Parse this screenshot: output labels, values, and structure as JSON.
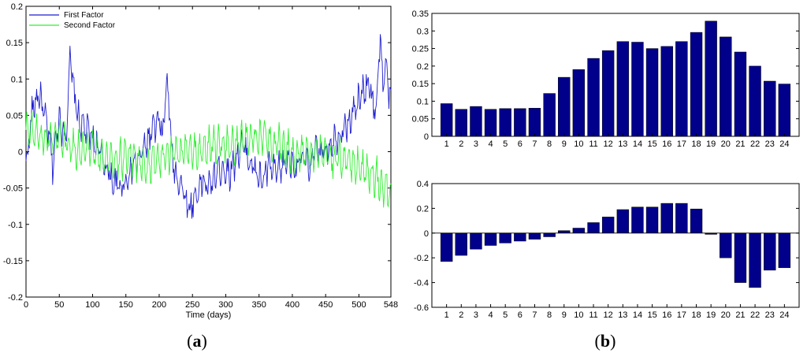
{
  "captions": {
    "left": "a",
    "right": "b"
  },
  "chart_data": [
    {
      "type": "line",
      "xlabel": "Time (days)",
      "ylabel": "",
      "xlim": [
        0,
        548
      ],
      "ylim": [
        -0.2,
        0.2
      ],
      "xticks": [
        "0",
        "50",
        "100",
        "150",
        "200",
        "250",
        "300",
        "350",
        "400",
        "450",
        "500",
        "548"
      ],
      "yticks": [
        "-0.2",
        "-0.15",
        "-0.1",
        "-0.05",
        "0",
        "0.05",
        "0.1",
        "0.15",
        "0.2"
      ],
      "legend_position": "top-left",
      "series": [
        {
          "name": "First Factor",
          "color": "#1f1fcf",
          "anchors": [
            [
              0,
              -0.02
            ],
            [
              5,
              0.02
            ],
            [
              10,
              0.06
            ],
            [
              20,
              0.08
            ],
            [
              30,
              0.04
            ],
            [
              35,
              0.02
            ],
            [
              40,
              -0.02
            ],
            [
              50,
              0.05
            ],
            [
              55,
              0.03
            ],
            [
              60,
              0.02
            ],
            [
              66,
              0.13
            ],
            [
              72,
              0.08
            ],
            [
              80,
              0.04
            ],
            [
              90,
              0.03
            ],
            [
              100,
              0.02
            ],
            [
              110,
              0.0
            ],
            [
              120,
              -0.02
            ],
            [
              130,
              -0.04
            ],
            [
              140,
              -0.05
            ],
            [
              150,
              -0.04
            ],
            [
              160,
              -0.02
            ],
            [
              170,
              -0.01
            ],
            [
              180,
              0.01
            ],
            [
              190,
              0.03
            ],
            [
              200,
              0.04
            ],
            [
              205,
              0.02
            ],
            [
              212,
              0.1
            ],
            [
              220,
              -0.01
            ],
            [
              225,
              -0.03
            ],
            [
              235,
              -0.05
            ],
            [
              245,
              -0.08
            ],
            [
              255,
              -0.06
            ],
            [
              265,
              -0.04
            ],
            [
              275,
              -0.05
            ],
            [
              285,
              -0.03
            ],
            [
              295,
              -0.02
            ],
            [
              305,
              -0.03
            ],
            [
              315,
              -0.01
            ],
            [
              325,
              0.01
            ],
            [
              335,
              -0.01
            ],
            [
              345,
              -0.03
            ],
            [
              355,
              -0.04
            ],
            [
              365,
              -0.02
            ],
            [
              375,
              -0.03
            ],
            [
              385,
              -0.02
            ],
            [
              395,
              -0.01
            ],
            [
              405,
              -0.02
            ],
            [
              415,
              -0.01
            ],
            [
              425,
              -0.02
            ],
            [
              435,
              0.0
            ],
            [
              445,
              0.0
            ],
            [
              455,
              0.01
            ],
            [
              465,
              0.02
            ],
            [
              475,
              0.03
            ],
            [
              485,
              0.04
            ],
            [
              495,
              0.06
            ],
            [
              505,
              0.08
            ],
            [
              515,
              0.1
            ],
            [
              520,
              0.07
            ],
            [
              525,
              0.05
            ],
            [
              532,
              0.16
            ],
            [
              536,
              0.09
            ],
            [
              540,
              0.12
            ],
            [
              548,
              0.06
            ]
          ],
          "amplitude": 0.025
        },
        {
          "name": "Second Factor",
          "color": "#33ee33",
          "anchors": [
            [
              0,
              0.03
            ],
            [
              20,
              0.02
            ],
            [
              40,
              0.02
            ],
            [
              60,
              0.01
            ],
            [
              80,
              0.0
            ],
            [
              100,
              0.0
            ],
            [
              120,
              -0.01
            ],
            [
              140,
              -0.01
            ],
            [
              160,
              -0.01
            ],
            [
              180,
              -0.02
            ],
            [
              200,
              -0.01
            ],
            [
              220,
              0.0
            ],
            [
              240,
              0.0
            ],
            [
              260,
              0.0
            ],
            [
              280,
              0.01
            ],
            [
              300,
              0.01
            ],
            [
              320,
              0.01
            ],
            [
              340,
              0.02
            ],
            [
              360,
              0.02
            ],
            [
              380,
              0.01
            ],
            [
              400,
              0.0
            ],
            [
              420,
              0.0
            ],
            [
              440,
              0.0
            ],
            [
              460,
              -0.01
            ],
            [
              480,
              -0.01
            ],
            [
              500,
              -0.02
            ],
            [
              520,
              -0.03
            ],
            [
              540,
              -0.05
            ],
            [
              548,
              -0.06
            ]
          ],
          "amplitude": 0.022
        }
      ]
    },
    {
      "type": "bar",
      "categories": [
        "1",
        "2",
        "3",
        "4",
        "5",
        "6",
        "7",
        "8",
        "9",
        "10",
        "11",
        "12",
        "13",
        "14",
        "15",
        "16",
        "17",
        "18",
        "19",
        "20",
        "21",
        "22",
        "23",
        "24"
      ],
      "values": [
        0.093,
        0.077,
        0.085,
        0.077,
        0.079,
        0.079,
        0.08,
        0.122,
        0.168,
        0.19,
        0.222,
        0.244,
        0.27,
        0.268,
        0.25,
        0.256,
        0.27,
        0.296,
        0.328,
        0.283,
        0.24,
        0.2,
        0.157,
        0.149
      ],
      "ylim": [
        0,
        0.35
      ],
      "yticks": [
        "0",
        "0.05",
        "0.1",
        "0.15",
        "0.2",
        "0.25",
        "0.3",
        "0.35"
      ],
      "color": "#00008b"
    },
    {
      "type": "bar",
      "categories": [
        "1",
        "2",
        "3",
        "4",
        "5",
        "6",
        "7",
        "8",
        "9",
        "10",
        "11",
        "12",
        "13",
        "14",
        "15",
        "16",
        "17",
        "18",
        "19",
        "20",
        "21",
        "22",
        "23",
        "24"
      ],
      "values": [
        -0.23,
        -0.18,
        -0.13,
        -0.1,
        -0.08,
        -0.065,
        -0.05,
        -0.03,
        0.02,
        0.04,
        0.085,
        0.13,
        0.19,
        0.21,
        0.21,
        0.24,
        0.24,
        0.195,
        -0.01,
        -0.2,
        -0.4,
        -0.44,
        -0.3,
        -0.28
      ],
      "ylim": [
        -0.6,
        0.4
      ],
      "yticks": [
        "-0.6",
        "-0.4",
        "-0.2",
        "0",
        "0.2",
        "0.4"
      ],
      "color": "#00008b"
    }
  ]
}
